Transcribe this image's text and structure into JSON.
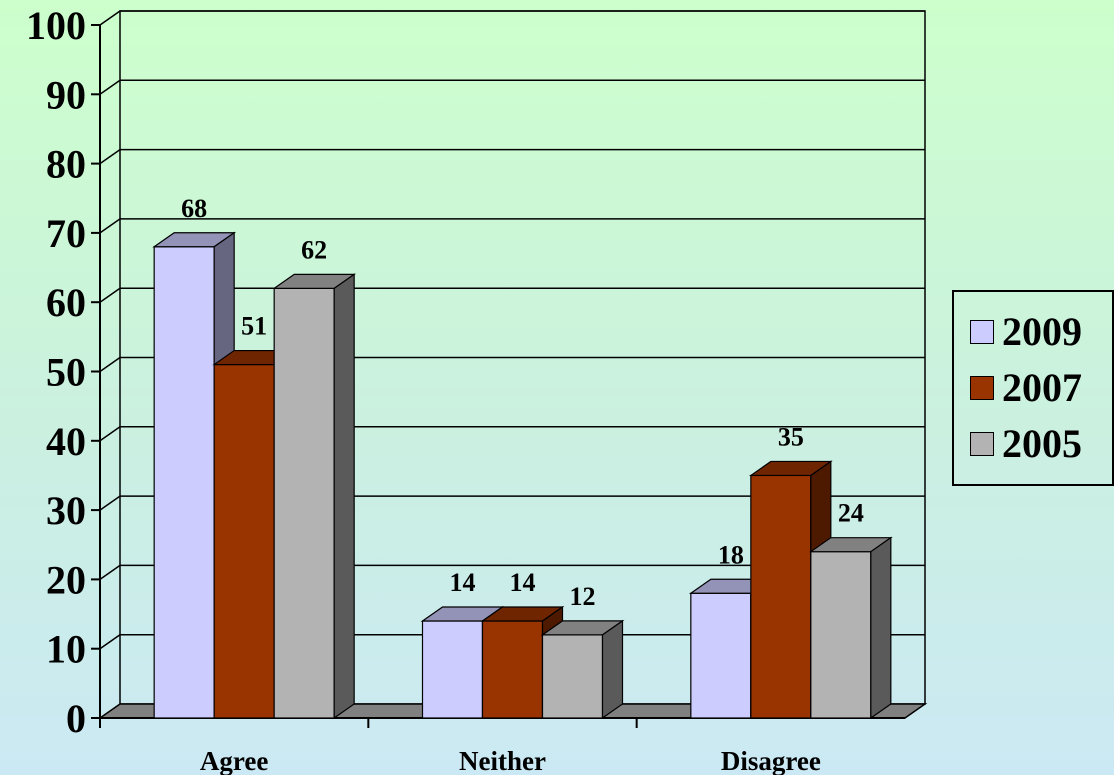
{
  "chart_data": {
    "type": "bar",
    "title": "",
    "xlabel": "",
    "ylabel": "",
    "categories": [
      "Agree",
      "Neither",
      "Disagree"
    ],
    "series": [
      {
        "name": "2009",
        "values": [
          68,
          14,
          18
        ],
        "color": "#ccccff"
      },
      {
        "name": "2007",
        "values": [
          51,
          14,
          35
        ],
        "color": "#993300"
      },
      {
        "name": "2005",
        "values": [
          62,
          12,
          24
        ],
        "color": "#b3b3b3"
      }
    ],
    "ylim": [
      0,
      100
    ],
    "yticks": [
      "0",
      "10",
      "20",
      "30",
      "40",
      "50",
      "60",
      "70",
      "80",
      "90",
      "100"
    ],
    "grid": true,
    "legend": "right",
    "style": "3d-clustered-bar"
  }
}
